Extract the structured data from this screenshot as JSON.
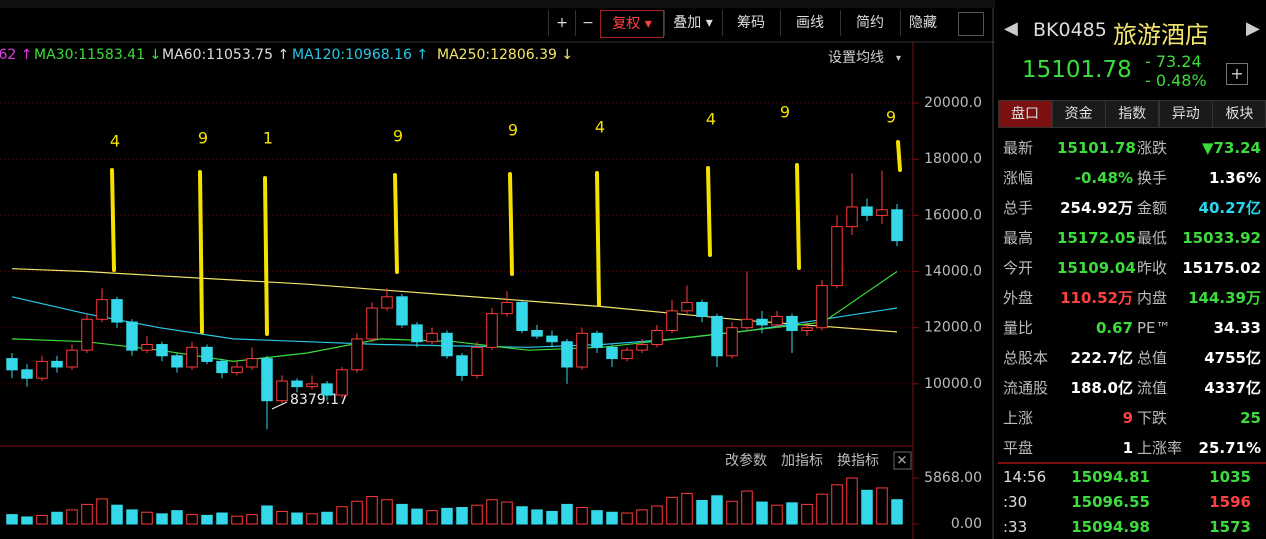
{
  "toolbar": {
    "buttons": [
      "+",
      "−",
      "复权",
      "叠加",
      "筹码",
      "画线",
      "简约",
      "隐藏"
    ]
  },
  "ma_legend": [
    {
      "text": ".62 ↑",
      "color": "#e040e0"
    },
    {
      "text": "MA30:11583.41 ↓",
      "color": "#3ddc3d"
    },
    {
      "text": "MA60:11053.75 ↑",
      "color": "#dddddd"
    },
    {
      "text": "MA120:10968.16 ↑",
      "color": "#29c8e8"
    },
    {
      "text": "MA250:12806.39 ↓",
      "color": "#f2e46a"
    }
  ],
  "settings_label": "设置均线",
  "price_axis": {
    "ylim": [
      8000,
      21000
    ],
    "ticks": [
      {
        "value": 20000,
        "label": "20000.0"
      },
      {
        "value": 18000,
        "label": "18000.0"
      },
      {
        "value": 16000,
        "label": "16000.0"
      },
      {
        "value": 14000,
        "label": "14000.0"
      },
      {
        "value": 12000,
        "label": "12000.0"
      },
      {
        "value": 10000,
        "label": "10000.0"
      }
    ]
  },
  "annotations": [
    "4",
    "9",
    "1",
    "9",
    "9",
    "4",
    "4",
    "9",
    "9"
  ],
  "low_label": "8379.17",
  "candles": [
    [
      10900,
      11100,
      10200,
      10500
    ],
    [
      10500,
      10700,
      9900,
      10200
    ],
    [
      10200,
      11000,
      10100,
      10800
    ],
    [
      10800,
      11000,
      10400,
      10600
    ],
    [
      10600,
      11400,
      10500,
      11200
    ],
    [
      11200,
      12500,
      11100,
      12300
    ],
    [
      12300,
      13400,
      12200,
      13000
    ],
    [
      13000,
      13100,
      12000,
      12200
    ],
    [
      12200,
      12300,
      11000,
      11200
    ],
    [
      11200,
      11700,
      11100,
      11400
    ],
    [
      11400,
      11500,
      10800,
      11000
    ],
    [
      11000,
      11100,
      10400,
      10600
    ],
    [
      10600,
      11500,
      10500,
      11300
    ],
    [
      11300,
      11400,
      10700,
      10800
    ],
    [
      10800,
      10900,
      10200,
      10400
    ],
    [
      10400,
      10800,
      10300,
      10600
    ],
    [
      10600,
      11300,
      10500,
      10900
    ],
    [
      10900,
      11000,
      8379.17,
      9400
    ],
    [
      9400,
      10300,
      9300,
      10100
    ],
    [
      10100,
      10200,
      9700,
      9900
    ],
    [
      9900,
      10300,
      9800,
      10000
    ],
    [
      10000,
      10100,
      9400,
      9600
    ],
    [
      9600,
      10600,
      9500,
      10500
    ],
    [
      10500,
      11800,
      10400,
      11600
    ],
    [
      11600,
      12900,
      11500,
      12700
    ],
    [
      12700,
      13400,
      12600,
      13100
    ],
    [
      13100,
      13200,
      12000,
      12100
    ],
    [
      12100,
      12200,
      11300,
      11500
    ],
    [
      11500,
      12000,
      11400,
      11800
    ],
    [
      11800,
      11900,
      10900,
      11000
    ],
    [
      11000,
      11100,
      10100,
      10300
    ],
    [
      10300,
      11500,
      10200,
      11300
    ],
    [
      11300,
      12700,
      11200,
      12500
    ],
    [
      12500,
      13300,
      12400,
      12900
    ],
    [
      12900,
      13000,
      11800,
      11900
    ],
    [
      11900,
      12100,
      11600,
      11700
    ],
    [
      11700,
      11900,
      11300,
      11500
    ],
    [
      11500,
      11600,
      10000,
      10600
    ],
    [
      10600,
      12000,
      10500,
      11800
    ],
    [
      11800,
      11900,
      11100,
      11300
    ],
    [
      11300,
      11400,
      10600,
      10900
    ],
    [
      10900,
      11300,
      10800,
      11200
    ],
    [
      11200,
      11600,
      11100,
      11400
    ],
    [
      11400,
      12100,
      11300,
      11900
    ],
    [
      11900,
      13000,
      11800,
      12600
    ],
    [
      12600,
      13500,
      12500,
      12900
    ],
    [
      12900,
      13000,
      12200,
      12400
    ],
    [
      12400,
      12500,
      10600,
      11000
    ],
    [
      11000,
      12200,
      10900,
      12000
    ],
    [
      12000,
      14000,
      11900,
      12300
    ],
    [
      12300,
      12600,
      11800,
      12100
    ],
    [
      12100,
      12600,
      12000,
      12400
    ],
    [
      12400,
      12500,
      11100,
      11900
    ],
    [
      11900,
      12200,
      11700,
      12000
    ],
    [
      12000,
      13700,
      11900,
      13500
    ],
    [
      13500,
      16000,
      13400,
      15600
    ],
    [
      15600,
      17500,
      15300,
      16300
    ],
    [
      16300,
      16600,
      15800,
      16000
    ],
    [
      16000,
      17600,
      15700,
      16200
    ],
    [
      16200,
      16400,
      14900,
      15101.78
    ]
  ],
  "ma_lines": [
    {
      "color": "#f2e46a",
      "values": [
        14100,
        14000,
        13850,
        13700,
        13550,
        13350,
        13150,
        12950,
        12750,
        12500,
        12250,
        12050,
        11850
      ]
    },
    {
      "color": "#29c8e8",
      "values": [
        13100,
        12500,
        12000,
        11600,
        11500,
        11400,
        11350,
        11300,
        11400,
        11600,
        11900,
        12300,
        12700
      ]
    },
    {
      "color": "#3ddc3d",
      "values": [
        11600,
        11500,
        11200,
        10800,
        11100,
        11600,
        11500,
        11200,
        11300,
        11600,
        11900,
        12200,
        14000
      ]
    }
  ],
  "indicator_buttons": [
    "改参数",
    "加指标",
    "换指标"
  ],
  "volume": {
    "ylim": [
      0,
      5868
    ],
    "ticks": [
      {
        "value": 5868,
        "label": "5868.00"
      },
      {
        "value": 0,
        "label": "0.00"
      }
    ],
    "values": [
      1200,
      900,
      1100,
      1500,
      1800,
      2500,
      3200,
      2400,
      1800,
      1500,
      1300,
      1700,
      1200,
      1100,
      1400,
      1000,
      1200,
      2300,
      1600,
      1400,
      1300,
      1500,
      2200,
      2900,
      3500,
      3100,
      2500,
      1900,
      1700,
      2000,
      2100,
      2400,
      3100,
      2800,
      2200,
      1800,
      1600,
      2500,
      2100,
      1700,
      1500,
      1400,
      1800,
      2300,
      3400,
      3900,
      3000,
      3600,
      2900,
      4200,
      2800,
      2400,
      2700,
      2500,
      3800,
      5000,
      5868,
      4300,
      4600,
      3100
    ]
  },
  "panel": {
    "code": "BK0485",
    "name": "旅游酒店",
    "price": "15101.78",
    "change": "- 73.24",
    "pct": "- 0.48%",
    "tabs": [
      "盘口",
      "资金",
      "指数",
      "异动",
      "板块"
    ],
    "rows": [
      [
        {
          "t": "最新"
        },
        {
          "t": "15101.78",
          "c": "#3ddc3d"
        },
        {
          "t": "涨跌"
        },
        {
          "t": "▼73.24",
          "c": "#3ddc3d"
        }
      ],
      [
        {
          "t": "涨幅"
        },
        {
          "t": "-0.48%",
          "c": "#3ddc3d"
        },
        {
          "t": "换手"
        },
        {
          "t": "1.36%",
          "c": "#ffffff"
        }
      ],
      [
        {
          "t": "总手"
        },
        {
          "t": "254.92万",
          "c": "#ffffff"
        },
        {
          "t": "金额"
        },
        {
          "t": "40.27亿",
          "c": "#29d8f0"
        }
      ],
      [
        {
          "t": "最高"
        },
        {
          "t": "15172.05",
          "c": "#3ddc3d"
        },
        {
          "t": "最低"
        },
        {
          "t": "15033.92",
          "c": "#3ddc3d"
        }
      ],
      [
        {
          "t": "今开"
        },
        {
          "t": "15109.04",
          "c": "#3ddc3d"
        },
        {
          "t": "昨收"
        },
        {
          "t": "15175.02",
          "c": "#ffffff"
        }
      ],
      [
        {
          "t": "外盘"
        },
        {
          "t": "110.52万",
          "c": "#ff4040"
        },
        {
          "t": "内盘"
        },
        {
          "t": "144.39万",
          "c": "#3ddc3d"
        }
      ],
      [
        {
          "t": "量比"
        },
        {
          "t": "0.67",
          "c": "#3ddc3d"
        },
        {
          "t": "PE™"
        },
        {
          "t": "34.33",
          "c": "#ffffff"
        }
      ],
      [
        {
          "t": "总股本"
        },
        {
          "t": "222.7亿",
          "c": "#ffffff"
        },
        {
          "t": "总值"
        },
        {
          "t": "4755亿",
          "c": "#ffffff"
        }
      ],
      [
        {
          "t": "流通股"
        },
        {
          "t": "188.0亿",
          "c": "#ffffff"
        },
        {
          "t": "流值"
        },
        {
          "t": "4337亿",
          "c": "#ffffff"
        }
      ],
      [
        {
          "t": "上涨"
        },
        {
          "t": "9",
          "c": "#ff4040"
        },
        {
          "t": "下跌"
        },
        {
          "t": "25",
          "c": "#3ddc3d"
        }
      ],
      [
        {
          "t": "平盘"
        },
        {
          "t": "1",
          "c": "#ffffff"
        },
        {
          "t": "上涨率"
        },
        {
          "t": "25.71%",
          "c": "#ffffff"
        }
      ]
    ],
    "ticks": [
      [
        {
          "t": "14:56"
        },
        {
          "t": "15094.81",
          "c": "#3ddc3d"
        },
        {
          "t": "1035",
          "c": "#3ddc3d"
        }
      ],
      [
        {
          "t": ":30"
        },
        {
          "t": "15096.55",
          "c": "#3ddc3d"
        },
        {
          "t": "1596",
          "c": "#ff4040"
        }
      ],
      [
        {
          "t": ":33"
        },
        {
          "t": "15094.98",
          "c": "#3ddc3d"
        },
        {
          "t": "1573",
          "c": "#3ddc3d"
        }
      ]
    ]
  }
}
